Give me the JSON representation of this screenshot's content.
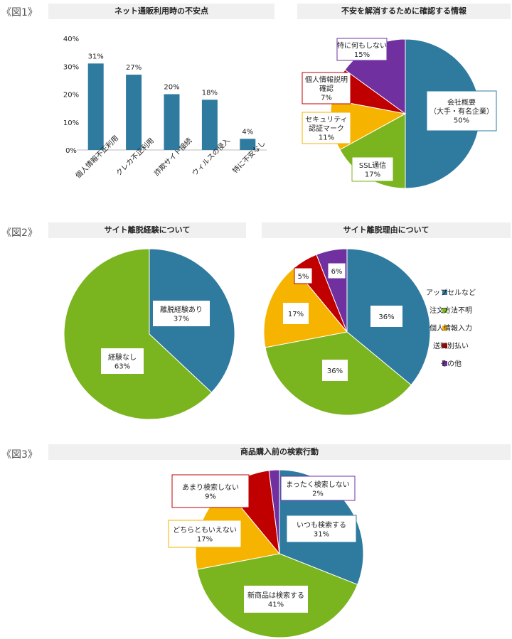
{
  "figure_labels": [
    "《図1》",
    "《図2》",
    "《図3》"
  ],
  "colors": {
    "blue": "#2e7b9f",
    "green": "#7ab41f",
    "yellow": "#f6b400",
    "red": "#c00000",
    "purple": "#7030a0"
  },
  "chart_data": [
    {
      "type": "bar",
      "title": "ネット通販利用時の不安点",
      "categories": [
        "個人情報不正利用",
        "クレカ不正利用",
        "詐欺サイト接続",
        "ウィルスの侵入",
        "特に不安なし"
      ],
      "values": [
        31,
        27,
        20,
        18,
        4
      ],
      "data_labels": [
        "31%",
        "27%",
        "20%",
        "18%",
        "4%"
      ],
      "yticks": [
        "0%",
        "10%",
        "20%",
        "30%",
        "40%"
      ],
      "ylim": [
        0,
        40
      ],
      "color": "#2e7b9f"
    },
    {
      "type": "pie",
      "title": "不安を解消するために確認する情報",
      "slices": [
        {
          "lines": [
            "会社概要",
            "（大手・有名企業）",
            "50%"
          ],
          "value": 50,
          "color": "#2e7b9f"
        },
        {
          "lines": [
            "SSL通信",
            "17%"
          ],
          "value": 17,
          "color": "#7ab41f"
        },
        {
          "lines": [
            "セキュリティ",
            "認証マーク",
            "11%"
          ],
          "value": 11,
          "color": "#f6b400"
        },
        {
          "lines": [
            "個人情報説明",
            "確認",
            "7%"
          ],
          "value": 7,
          "color": "#c00000"
        },
        {
          "lines": [
            "特に何もしない",
            "15%"
          ],
          "value": 15,
          "color": "#7030a0"
        }
      ]
    },
    {
      "type": "pie",
      "title": "サイト離脱経験について",
      "slices": [
        {
          "lines": [
            "離脱経験あり",
            "37%"
          ],
          "value": 37,
          "color": "#2e7b9f"
        },
        {
          "lines": [
            "経験なし",
            "63%"
          ],
          "value": 63,
          "color": "#7ab41f"
        }
      ]
    },
    {
      "type": "pie",
      "title": "サイト離脱理由について",
      "legend": [
        "アップセルなど",
        "注文方法不明",
        "個人情報入力",
        "送料別払い",
        "その他"
      ],
      "legend_position": "right",
      "slices": [
        {
          "lines": [
            "36%"
          ],
          "value": 36,
          "color": "#2e7b9f"
        },
        {
          "lines": [
            "36%"
          ],
          "value": 36,
          "color": "#7ab41f"
        },
        {
          "lines": [
            "17%"
          ],
          "value": 17,
          "color": "#f6b400"
        },
        {
          "lines": [
            "5%"
          ],
          "value": 5,
          "color": "#c00000"
        },
        {
          "lines": [
            "6%"
          ],
          "value": 6,
          "color": "#7030a0"
        }
      ]
    },
    {
      "type": "pie",
      "title": "商品購入前の検索行動",
      "slices": [
        {
          "lines": [
            "いつも検索する",
            "31%"
          ],
          "value": 31,
          "color": "#2e7b9f"
        },
        {
          "lines": [
            "新商品は検索する",
            "41%"
          ],
          "value": 41,
          "color": "#7ab41f"
        },
        {
          "lines": [
            "どちらともいえない",
            "17%"
          ],
          "value": 17,
          "color": "#f6b400"
        },
        {
          "lines": [
            "あまり検索しない",
            "9%"
          ],
          "value": 9,
          "color": "#c00000"
        },
        {
          "lines": [
            "まったく検索しない",
            "2%"
          ],
          "value": 2,
          "color": "#7030a0"
        }
      ]
    }
  ]
}
